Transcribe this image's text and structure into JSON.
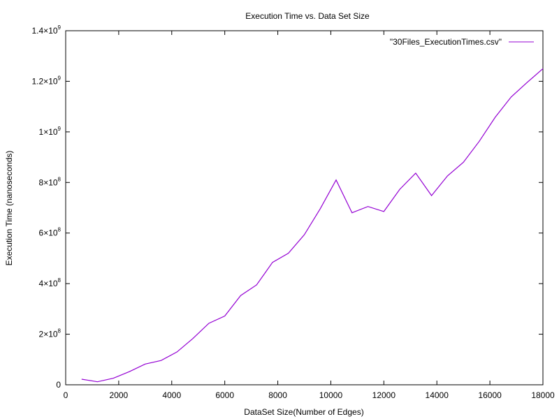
{
  "chart_data": {
    "type": "line",
    "title": "Execution Time vs. Data Set Size",
    "xlabel": "DataSet Size(Number of Edges)",
    "ylabel": "Execution Time (nanoseconds)",
    "xlim": [
      0,
      18000
    ],
    "ylim": [
      0,
      1400000000
    ],
    "grid": false,
    "legend_position": "top-right",
    "x_ticks": [
      {
        "value": 0,
        "label": "0"
      },
      {
        "value": 2000,
        "label": "2000"
      },
      {
        "value": 4000,
        "label": "4000"
      },
      {
        "value": 6000,
        "label": "6000"
      },
      {
        "value": 8000,
        "label": "8000"
      },
      {
        "value": 10000,
        "label": "10000"
      },
      {
        "value": 12000,
        "label": "12000"
      },
      {
        "value": 14000,
        "label": "14000"
      },
      {
        "value": 16000,
        "label": "16000"
      },
      {
        "value": 18000,
        "label": "18000"
      }
    ],
    "y_ticks": [
      {
        "value": 0,
        "mantissa": "0",
        "exponent": ""
      },
      {
        "value": 200000000,
        "mantissa": "2×10",
        "exponent": "8"
      },
      {
        "value": 400000000,
        "mantissa": "4×10",
        "exponent": "8"
      },
      {
        "value": 600000000,
        "mantissa": "6×10",
        "exponent": "8"
      },
      {
        "value": 800000000,
        "mantissa": "8×10",
        "exponent": "8"
      },
      {
        "value": 1000000000,
        "mantissa": "1×10",
        "exponent": "9"
      },
      {
        "value": 1200000000,
        "mantissa": "1.2×10",
        "exponent": "9"
      },
      {
        "value": 1400000000,
        "mantissa": "1.4×10",
        "exponent": "9"
      }
    ],
    "series": [
      {
        "name": "\"30Files_ExecutionTimes.csv\"",
        "color": "#9400d3",
        "x": [
          600,
          1200,
          1800,
          2400,
          3000,
          3600,
          4200,
          4800,
          5400,
          6000,
          6600,
          7200,
          7800,
          8400,
          9000,
          9600,
          10200,
          10800,
          11400,
          12000,
          12600,
          13200,
          13800,
          14400,
          15000,
          15600,
          16200,
          16800,
          17400,
          18000
        ],
        "values": [
          22000000,
          12000000,
          26000000,
          52000000,
          82000000,
          96000000,
          130000000,
          183000000,
          243000000,
          272000000,
          353000000,
          395000000,
          484000000,
          520000000,
          593000000,
          696000000,
          810000000,
          680000000,
          705000000,
          685000000,
          773000000,
          837000000,
          748000000,
          826000000,
          880000000,
          963000000,
          1058000000,
          1138000000,
          1195000000,
          1250000000
        ]
      }
    ]
  }
}
